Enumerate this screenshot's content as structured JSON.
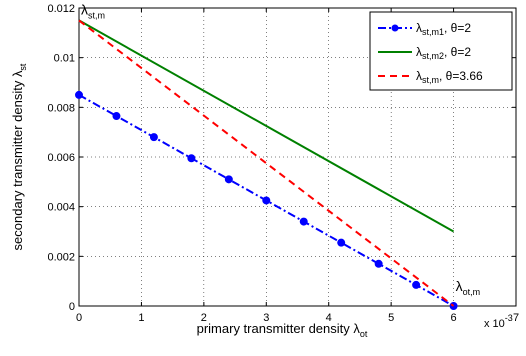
{
  "chart_data": {
    "type": "line",
    "xlabel": {
      "text": "primary transmitter density λ",
      "sub": "ot"
    },
    "ylabel": {
      "text": "secondary transmitter density  λ",
      "sub": "st"
    },
    "x_exponent_label": "x 10",
    "x_exponent_power": "-3",
    "xlim": [
      0,
      7
    ],
    "ylim": [
      0,
      0.012
    ],
    "xticks": [
      0,
      1,
      2,
      3,
      4,
      5,
      6,
      7
    ],
    "xtick_labels": [
      "0",
      "1",
      "2",
      "3",
      "4",
      "5",
      "6",
      "7"
    ],
    "yticks": [
      0,
      0.002,
      0.004,
      0.006,
      0.008,
      0.01,
      0.012
    ],
    "ytick_labels": [
      "0",
      "0.002",
      "0.004",
      "0.006",
      "0.008",
      "0.01",
      "0.012"
    ],
    "grid": true,
    "legend_position": "top-right",
    "series": [
      {
        "name": {
          "base": "λ",
          "sub": "st,m1",
          "suffix": ", θ=2"
        },
        "color": "#0000ff",
        "style": "dash-dot",
        "marker": "circle",
        "x": [
          0,
          0.6,
          1.2,
          1.8,
          2.4,
          3.0,
          3.6,
          4.2,
          4.8,
          5.4,
          6.0
        ],
        "y": [
          0.0085,
          0.00765,
          0.0068,
          0.00595,
          0.0051,
          0.00425,
          0.0034,
          0.00255,
          0.0017,
          0.00085,
          0.0
        ]
      },
      {
        "name": {
          "base": "λ",
          "sub": "st,m2",
          "suffix": ", θ=2"
        },
        "color": "#008000",
        "style": "solid",
        "marker": "none",
        "x": [
          0,
          6.0
        ],
        "y": [
          0.0115,
          0.003
        ]
      },
      {
        "name": {
          "base": "λ",
          "sub": "st,m",
          "suffix": ", θ=3.66"
        },
        "color": "#ff0000",
        "style": "dashed",
        "marker": "none",
        "x": [
          0,
          6.0
        ],
        "y": [
          0.0115,
          0.0
        ]
      }
    ],
    "annotations": [
      {
        "base": "λ",
        "sub": "st,m",
        "x": 0,
        "y": 0.0115
      },
      {
        "base": "λ",
        "sub": "ot,m",
        "x": 6.0,
        "y": 0
      }
    ]
  }
}
